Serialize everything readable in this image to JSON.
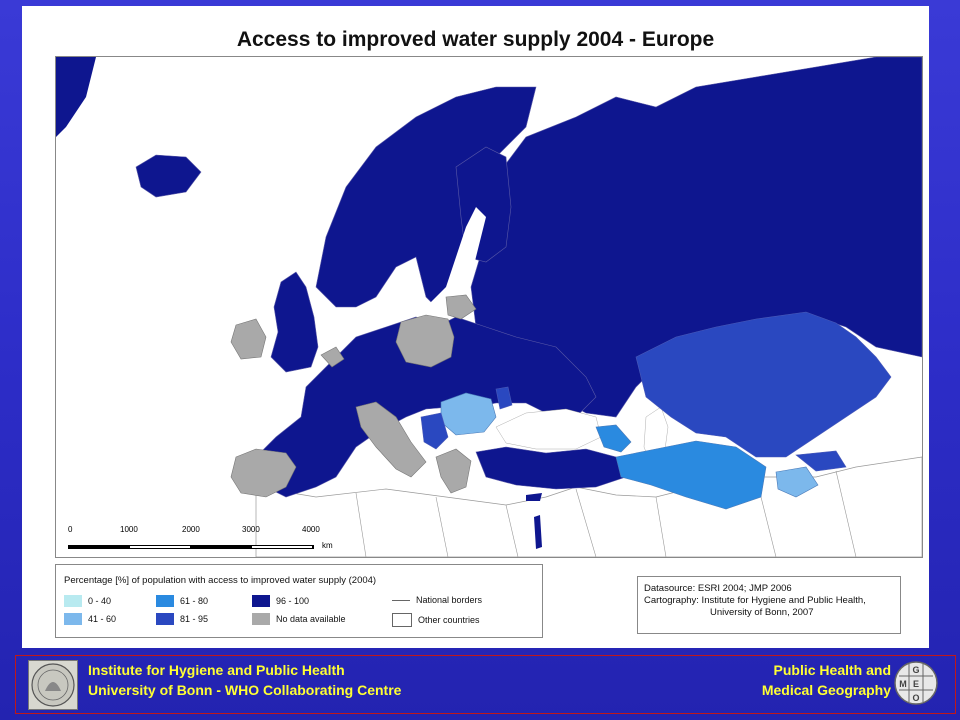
{
  "title": "Access to improved water supply 2004 - Europe",
  "scalebar": {
    "ticks": [
      "0",
      "1000",
      "2000",
      "3000",
      "4000"
    ],
    "unit": "km"
  },
  "legend": {
    "title": "Percentage [%] of population with access to improved water supply (2004)",
    "classes": [
      {
        "label": "0 - 40",
        "color": "#b8eaf0"
      },
      {
        "label": "41 - 60",
        "color": "#7cb8ec"
      },
      {
        "label": "61 - 80",
        "color": "#2a8ae0"
      },
      {
        "label": "81 - 95",
        "color": "#2a48c0"
      },
      {
        "label": "96 - 100",
        "color": "#0e168f"
      },
      {
        "label": "No data available",
        "color": "#a9a9a9"
      }
    ],
    "national_borders": "National borders",
    "other_countries": "Other countries"
  },
  "source": {
    "line1": "Datasource:  ESRI 2004; JMP 2006",
    "line2": "Cartography: Institute for Hygiene and Public Health,",
    "line3": "University of Bonn, 2007"
  },
  "footer": {
    "left_line1": "Institute for Hygiene and Public Health",
    "left_line2": "University of Bonn   -   WHO Collaborating Centre",
    "right_line1": "Public Health and",
    "right_line2": "Medical Geography",
    "geo_logo_letters": [
      "G",
      "E",
      "M",
      "O"
    ]
  },
  "colors": {
    "background": "#2d2dc8",
    "footer_text": "#ffff33",
    "footer_border": "#c01818",
    "high_access": "#0e168f",
    "sea": "#ffffff"
  }
}
